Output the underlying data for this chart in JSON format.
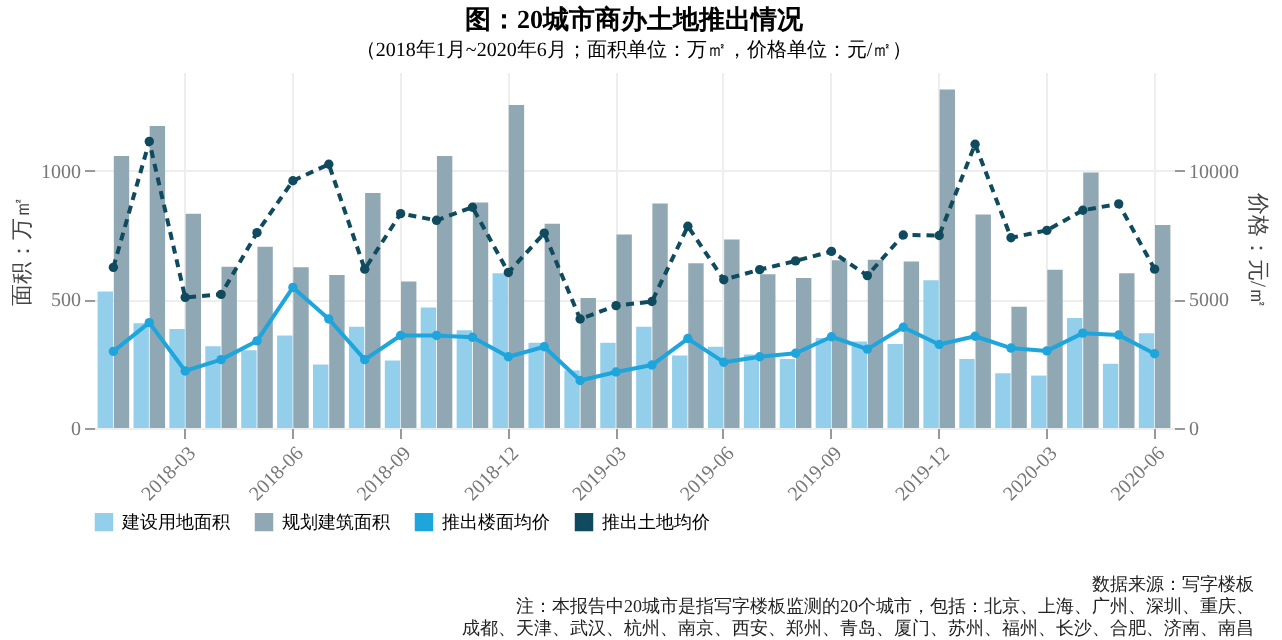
{
  "chart_data": {
    "type": "bar",
    "title": "图：20城市商办土地推出情况",
    "subtitle": "（2018年1月~2020年6月；面积单位：万㎡，价格单位：元/㎡）",
    "ylabel": "面积：万㎡",
    "y2label": "价格：元/㎡",
    "categories": [
      null,
      null,
      "2018-03",
      null,
      null,
      "2018-06",
      null,
      null,
      "2018-09",
      null,
      null,
      "2018-12",
      null,
      null,
      "2019-03",
      null,
      null,
      "2019-06",
      null,
      null,
      "2019-09",
      null,
      null,
      "2019-12",
      null,
      null,
      "2020-03",
      null,
      null,
      "2020-06"
    ],
    "series": [
      {
        "name": "建设用地面积",
        "color": "#93cfea",
        "values": [
          531,
          408,
          385,
          318,
          302,
          360,
          247,
          394,
          263,
          469,
          380,
          602,
          332,
          224,
          332,
          394,
          282,
          316,
          286,
          268,
          350,
          337,
          327,
          575,
          268,
          213,
          204,
          428,
          250,
          369
        ]
      },
      {
        "name": "规划建筑面积",
        "color": "#90a8b3",
        "values": [
          1058,
          1175,
          834,
          627,
          705,
          625,
          595,
          914,
          570,
          1058,
          877,
          1257,
          795,
          506,
          753,
          873,
          641,
          733,
          598,
          584,
          653,
          655,
          648,
          1317,
          831,
          472,
          616,
          994,
          602,
          790
        ]
      },
      {
        "name": "推出楼面均价",
        "type": "line",
        "axis": "y2",
        "color": "#1ea5dc",
        "line_style": "solid",
        "values": [
          2980,
          4100,
          2220,
          2660,
          3390,
          5470,
          4240,
          2660,
          3600,
          3600,
          3530,
          2770,
          3160,
          1850,
          2180,
          2450,
          3480,
          2560,
          2770,
          2910,
          3550,
          3070,
          3920,
          3250,
          3570,
          3110,
          3000,
          3690,
          3620,
          2890
        ]
      },
      {
        "name": "推出土地均价",
        "type": "line",
        "axis": "y2",
        "color": "#0f4a5e",
        "line_style": "dashed",
        "values": [
          6250,
          11150,
          5080,
          5200,
          7600,
          9620,
          10260,
          6180,
          8340,
          8080,
          8590,
          6050,
          7580,
          4240,
          4760,
          4920,
          7850,
          5770,
          6160,
          6500,
          6870,
          5930,
          7510,
          7490,
          11040,
          7400,
          7690,
          8470,
          8720,
          6180
        ]
      }
    ],
    "ylim": [
      0,
      1385
    ],
    "yticks": [
      0,
      500,
      1000
    ],
    "y2lim": [
      0,
      13850
    ],
    "y2ticks": [
      0,
      5000,
      10000
    ],
    "grid": true,
    "legend": "bottom",
    "marker": "circle",
    "annotations": [
      "数据来源：写字楼板",
      "注：本报告中20城市是指写字楼板监测的20个城市，包括：北京、上海、广州、深圳、重庆、",
      "成都、天津、武汉、杭州、南京、西安、郑州、青岛、厦门、苏州、福州、长沙、合肥、济南、南昌"
    ]
  }
}
